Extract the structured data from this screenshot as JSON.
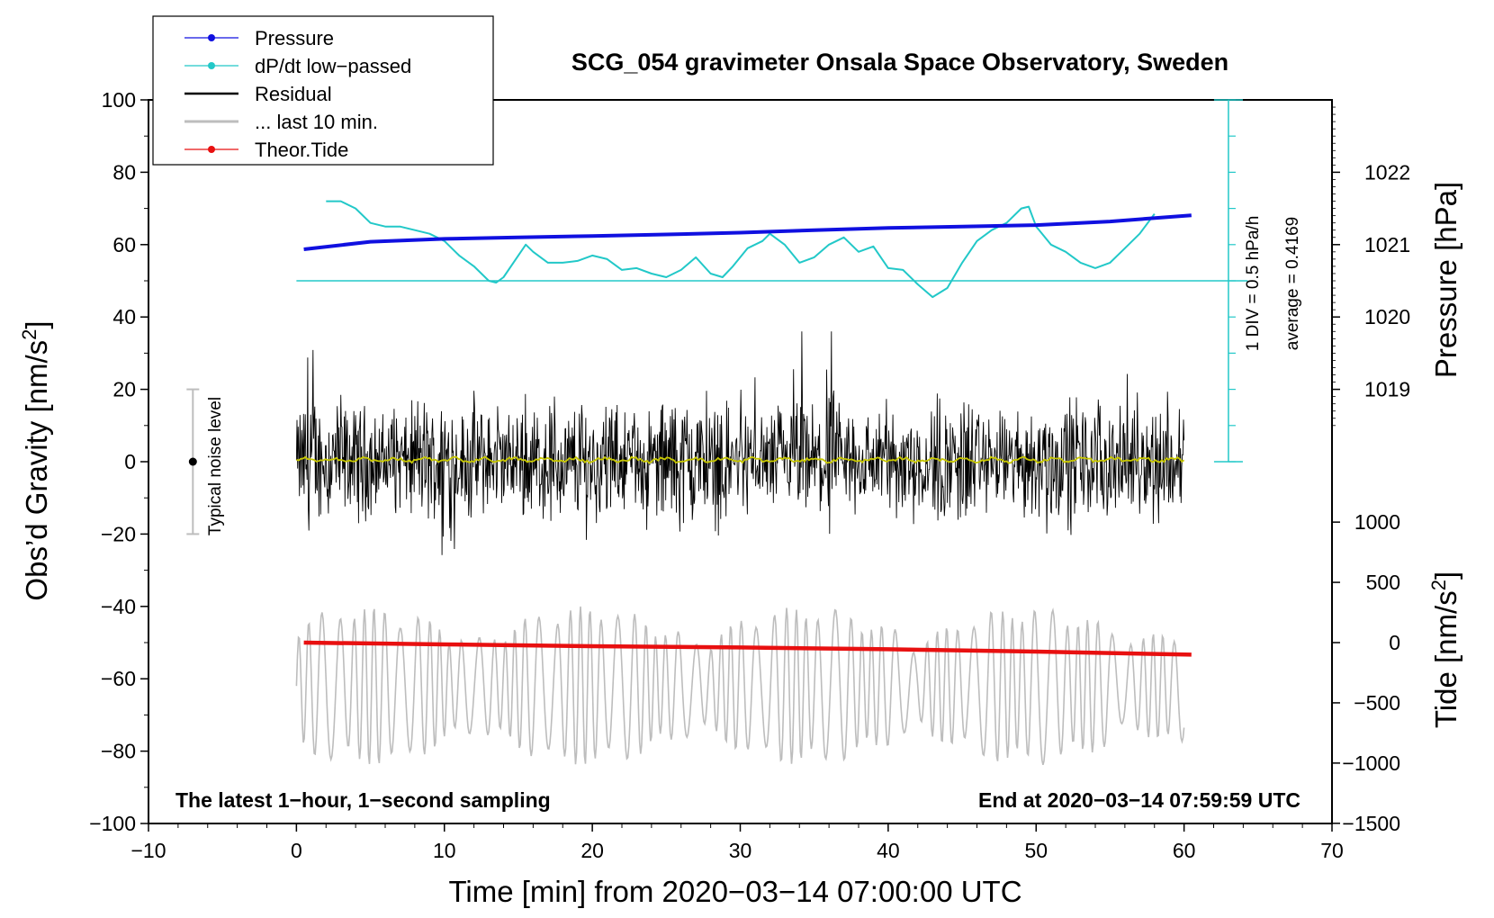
{
  "chart_data": {
    "type": "line",
    "title": "SCG_054 gravimeter Onsala Space Observatory, Sweden",
    "xlabel": "Time [min] from 2020−03−14 07:00:00 UTC",
    "ylabel_main": "Obs’d Gravity [nm/s",
    "ylabel_sup": "2",
    "ylabel_tail": "]",
    "ylabel_pressure": "Pressure [hPa]",
    "ylabel_tide_main": "Tide [nm/s",
    "ylabel_tide_sup": "2",
    "ylabel_tide_tail": "]",
    "xlim": [
      -10,
      70
    ],
    "ylim": [
      -100,
      100
    ],
    "x_ticks": [
      -10,
      0,
      10,
      20,
      30,
      40,
      50,
      60,
      70
    ],
    "x_tick_labels": [
      "−10",
      "0",
      "10",
      "20",
      "30",
      "40",
      "50",
      "60",
      "70"
    ],
    "y_ticks": [
      100,
      80,
      60,
      40,
      20,
      0,
      -20,
      -40,
      -60,
      -80,
      -100
    ],
    "y_tick_labels": [
      "100",
      "80",
      "60",
      "40",
      "20",
      "0",
      "−20",
      "−40",
      "−60",
      "−80",
      "−100"
    ],
    "pressure_axis": {
      "ticks": [
        1022,
        1021,
        1020,
        1019
      ],
      "tick_labels": [
        "1022",
        "1021",
        "1020",
        "1019"
      ],
      "map_value": 1021,
      "map_gravity": 60,
      "gravity_per_hPa": 20
    },
    "tide_axis": {
      "ticks": [
        1000,
        500,
        0,
        -500,
        -1000,
        -1500
      ],
      "tick_labels": [
        "1000",
        "500",
        "0",
        "−500",
        "−1000",
        "−1500"
      ],
      "map_value": 0,
      "map_gravity": -50,
      "gravity_per_unit": 0.0333
    },
    "legend": {
      "placement": "top-left",
      "entries": [
        {
          "label": "Pressure",
          "color": "#1010e0",
          "marker": true
        },
        {
          "label": "dP/dt low−passed",
          "color": "#22c8c8",
          "marker": true
        },
        {
          "label": "Residual",
          "color": "#000000",
          "marker": false
        },
        {
          "label": "... last 10 min.",
          "color": "#bdbdbd",
          "marker": false
        },
        {
          "label": "Theor.Tide",
          "color": "#e81010",
          "marker": true
        }
      ]
    },
    "annotations": {
      "bottom_left": "The latest 1−hour, 1−second sampling",
      "bottom_right": "End at 2020−03−14 07:59:59 UTC",
      "noise_label": "Typical noise level",
      "div_label": "1 DIV = 0.5 hPa/h",
      "average_label": "average = 0.4169"
    },
    "noise_bar": {
      "x": -7,
      "ymin": -20,
      "ymax": 20,
      "center": 0
    },
    "dpdt_scale": {
      "x": 63,
      "ymin": 0,
      "ymax": 100,
      "div": 10,
      "baseline": 50
    },
    "series": [
      {
        "name": "Pressure",
        "color": "#1010e0",
        "axis": "gravity",
        "x": [
          0.5,
          5,
          10,
          15,
          20,
          25,
          30,
          35,
          40,
          45,
          50,
          55,
          60.5
        ],
        "y": [
          58.7,
          60.8,
          61.6,
          62.0,
          62.4,
          62.8,
          63.3,
          64.0,
          64.6,
          65.0,
          65.4,
          66.4,
          68.1
        ]
      },
      {
        "name": "dP/dt low−passed",
        "color": "#22c8c8",
        "axis": "gravity",
        "x": [
          2,
          3,
          4,
          5,
          6,
          7,
          8,
          9,
          10,
          11,
          12,
          13,
          13.5,
          14,
          15,
          15.5,
          16,
          17,
          18,
          19,
          20,
          21,
          22,
          23,
          24,
          25,
          26,
          27,
          28,
          28.8,
          29.5,
          30.5,
          31.5,
          32,
          33,
          34,
          35,
          36,
          37,
          38,
          39,
          40,
          41,
          42,
          43,
          44,
          45,
          46,
          47,
          48,
          49,
          49.5,
          50,
          51,
          52,
          53,
          54,
          55,
          56,
          57,
          58
        ],
        "y": [
          72,
          72,
          70,
          66,
          65,
          65,
          64,
          63,
          61,
          57,
          54,
          50,
          49.5,
          51,
          57,
          60,
          58,
          55,
          55,
          55.5,
          57,
          56,
          53,
          53.5,
          52,
          51,
          53,
          56.5,
          52,
          51,
          54,
          59,
          61,
          63,
          60,
          55,
          56.5,
          60,
          62,
          58,
          59.5,
          53.5,
          53,
          49,
          45.5,
          48,
          55,
          61,
          64,
          66,
          70,
          70.5,
          65,
          60,
          58,
          55,
          53.5,
          55,
          59,
          63,
          68.5
        ]
      },
      {
        "name": "Residual",
        "color": "#000000",
        "axis": "gravity",
        "x": [
          0,
          60
        ],
        "y_min": -36,
        "y_max": 36
      },
      {
        "name": "Residual smoothed",
        "color": "#c8c800",
        "axis": "gravity",
        "x": [
          0,
          60
        ],
        "y": [
          0.5,
          0.5
        ]
      },
      {
        "name": "... last 10 min.",
        "color": "#bdbdbd",
        "axis": "gravity",
        "x": [
          0,
          60
        ],
        "y_min": -88,
        "y_max": -36
      },
      {
        "name": "Theor.Tide",
        "color": "#e81010",
        "axis": "tide",
        "x": [
          0.5,
          10,
          20,
          30,
          40,
          50,
          60.5
        ],
        "y": [
          0,
          -15,
          -30,
          -40,
          -55,
          -75,
          -100
        ]
      }
    ]
  }
}
